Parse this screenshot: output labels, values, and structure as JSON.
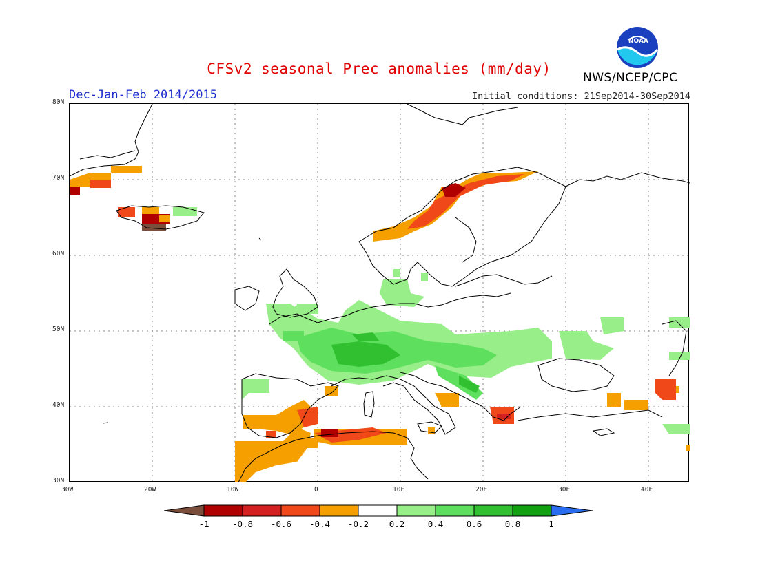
{
  "title": "CFSv2 seasonal Prec anomalies (mm/day)",
  "season": "Dec-Jan-Feb 2014/2015",
  "initial_conditions": "Initial conditions: 21Sep2014-30Sep2014",
  "organization": "NWS/NCEP/CPC",
  "logo_text": "NOAA",
  "map": {
    "region": "Europe",
    "lon_range": [
      -30,
      45
    ],
    "lat_range": [
      30,
      80
    ],
    "lat_labels": [
      "80N",
      "70N",
      "60N",
      "50N",
      "40N",
      "30N"
    ],
    "lon_labels": [
      "30W",
      "20W",
      "10W",
      "0",
      "10E",
      "20E",
      "30E",
      "40E"
    ],
    "gridlines": "dotted"
  },
  "colorbar": {
    "labels": [
      "-1",
      "-0.8",
      "-0.6",
      "-0.4",
      "-0.2",
      "0.2",
      "0.4",
      "0.6",
      "0.8",
      "1"
    ],
    "colors": [
      "#7a4e3a",
      "#b00000",
      "#d42020",
      "#f04818",
      "#f5a000",
      "#ffffff",
      "#98ee88",
      "#5ee05e",
      "#30c030",
      "#10a010",
      "#2a6cf0"
    ]
  },
  "anomalies": [
    {
      "region": "Iberia and Morocco coast",
      "sign": "negative",
      "category": "-0.4 to -0.2",
      "color": "#f5a000"
    },
    {
      "region": "Algeria/Tunisia coast",
      "sign": "negative",
      "category": "-0.6 to -0.4",
      "color": "#f04818"
    },
    {
      "region": "Norway coast",
      "sign": "negative",
      "category": "-0.8 to -0.6",
      "color": "#d42020"
    },
    {
      "region": "Iceland",
      "sign": "negative",
      "category": "-1 to -0.8",
      "color": "#b00000"
    },
    {
      "region": "Greece",
      "sign": "negative",
      "category": "-0.6 to -0.4",
      "color": "#f04818"
    },
    {
      "region": "France, Alps, Central Europe",
      "sign": "positive",
      "category": "0.4 to 0.8",
      "color": "#30c030"
    },
    {
      "region": "Adriatic",
      "sign": "positive",
      "category": "0.6 to 0.8",
      "color": "#30c030"
    },
    {
      "region": "British Isles / North Sea",
      "sign": "positive",
      "category": "0.2 to 0.4",
      "color": "#98ee88"
    }
  ]
}
